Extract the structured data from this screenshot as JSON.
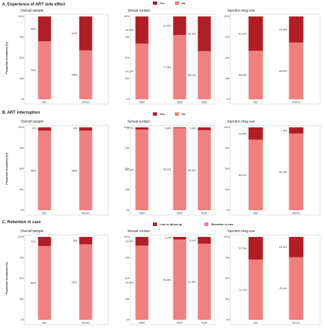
{
  "colors": {
    "top": "#b11e25",
    "bottom": "#f08080",
    "panel_border": "#cccccc"
  },
  "chart_data": [
    {
      "section": "A. Experience of ART side effect",
      "ylabel": "Proportion of patients (%)",
      "legend": [
        "Yes",
        "No"
      ],
      "panels": [
        {
          "title": "Overall sample",
          "type": "bar",
          "stacked": true,
          "categories": [
            "Men",
            "Women"
          ],
          "bottom_values": [
            70,
            59
          ],
          "top_values": [
            30,
            41
          ],
          "bottom_labels": [
            "70%",
            "59%"
          ],
          "top_labels": [
            "30%",
            "41%"
          ]
        },
        {
          "title": "Sexual contact",
          "type": "bar",
          "stacked": true,
          "categories": [
            "MSM",
            "MSW",
            "WSM"
          ],
          "bottom_values": [
            67.2,
            77.5,
            58.1
          ],
          "top_values": [
            32.8,
            22.5,
            41.9
          ],
          "bottom_labels": [
            "67.2%",
            "77.5%",
            "58.1%"
          ],
          "top_labels": [
            "32.8%",
            "22.5%",
            "41.9%"
          ]
        },
        {
          "title": "Injection drug use",
          "type": "bar",
          "stacked": true,
          "categories": [
            "Men",
            "Women"
          ],
          "bottom_values": [
            58.5,
            68.5
          ],
          "top_values": [
            41.5,
            31.5
          ],
          "bottom_labels": [
            "58.5%",
            "68.5%"
          ],
          "top_labels": [
            "41.5%",
            "31.5%"
          ]
        }
      ]
    },
    {
      "section": "B. ART interruption",
      "ylabel": "Proportion of patients (%)",
      "legend": [
        "Yes",
        "No"
      ],
      "panels": [
        {
          "title": "Overall sample",
          "type": "bar",
          "stacked": true,
          "categories": [
            "Men",
            "Women"
          ],
          "bottom_values": [
            96,
            96
          ],
          "top_values": [
            4,
            4
          ],
          "bottom_labels": [
            "96%",
            "96%"
          ],
          "top_labels": [
            "4%",
            "4%"
          ]
        },
        {
          "title": "Sexual contact",
          "type": "bar",
          "stacked": true,
          "categories": [
            "MSM",
            "MSW",
            "WSM"
          ],
          "bottom_values": [
            97.3,
            99.2,
            96.6
          ],
          "top_values": [
            2.7,
            0.8,
            3.4
          ],
          "bottom_labels": [
            "97.3%",
            "99.2%",
            "96.6%"
          ],
          "top_labels": [
            "2.7%",
            "0.8%",
            "3.4%"
          ]
        },
        {
          "title": "Injection drug use",
          "type": "bar",
          "stacked": true,
          "categories": [
            "Men",
            "Women"
          ],
          "bottom_values": [
            85.2,
            92.5
          ],
          "top_values": [
            14.8,
            7.5
          ],
          "bottom_labels": [
            "85.2%",
            "92.5%"
          ],
          "top_labels": [
            "14.8%",
            "7.5%"
          ]
        }
      ]
    },
    {
      "section": "C. Retention in care",
      "ylabel": "Proportion of patients (%)",
      "legend": [
        "Lost to follow-up",
        "Retention in care"
      ],
      "panels": [
        {
          "title": "Overall sample",
          "type": "bar",
          "stacked": true,
          "categories": [
            "Men",
            "Women"
          ],
          "bottom_values": [
            89,
            91
          ],
          "top_values": [
            11,
            9
          ],
          "bottom_labels": [
            "89%",
            "91%"
          ],
          "top_labels": [
            "11%",
            "9%"
          ]
        },
        {
          "title": "Sexual contact",
          "type": "bar",
          "stacked": true,
          "categories": [
            "MSM",
            "MSW",
            "WSM"
          ],
          "bottom_values": [
            89.6,
            96.8,
            91.8
          ],
          "top_values": [
            10.4,
            3.2,
            8.2
          ],
          "bottom_labels": [
            "89.6%",
            "96.8%",
            "91.8%"
          ],
          "top_labels": [
            "10.4%",
            "3.2%",
            "8.2%"
          ]
        },
        {
          "title": "Injection drug use",
          "type": "bar",
          "stacked": true,
          "categories": [
            "Men",
            "Women"
          ],
          "bottom_values": [
            72.7,
            75.6
          ],
          "top_values": [
            27.3,
            24.4
          ],
          "bottom_labels": [
            "72.7%",
            "75.6%"
          ],
          "top_labels": [
            "27.3%",
            "24.4%"
          ]
        }
      ]
    }
  ],
  "y_ticks": [
    "0%",
    "25%",
    "50%",
    "75%",
    "100%"
  ]
}
